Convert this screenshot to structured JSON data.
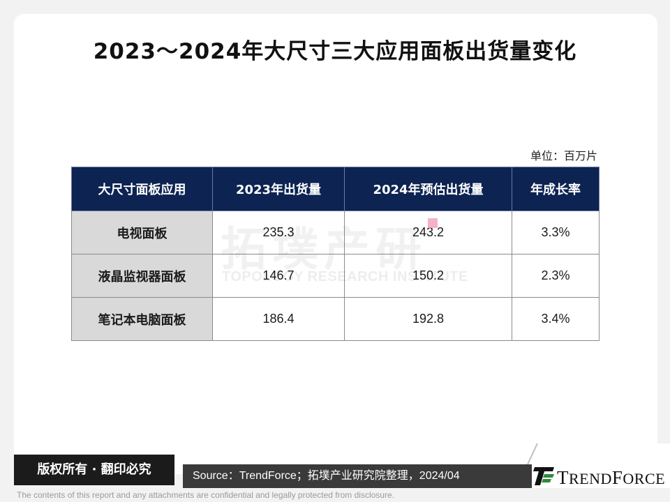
{
  "title": "2023～2024年大尺寸三大应用面板出货量变化",
  "unit": "单位：百万片",
  "watermark": {
    "cn": "拓墣产研",
    "en": "TOPOLOGY RESEARCH INSTITUTE"
  },
  "table": {
    "headers": [
      "大尺寸面板应用",
      "2023年出货量",
      "2024年预估出货量",
      "年成长率"
    ],
    "rows": [
      {
        "label": "电视面板",
        "v2023": "235.3",
        "v2024": "243.2",
        "growth": "3.3%"
      },
      {
        "label": "液晶监视器面板",
        "v2023": "146.7",
        "v2024": "150.2",
        "growth": "2.3%"
      },
      {
        "label": "笔记本电脑面板",
        "v2023": "186.4",
        "v2024": "192.8",
        "growth": "3.4%"
      }
    ]
  },
  "footer": {
    "copyright": "版权所有 · 翻印必究",
    "source": "Source：TrendForce；拓墣产业研究院整理，2024/04",
    "logo_first": "T",
    "logo_rest": "REND",
    "logo_first2": "F",
    "logo_rest2": "ORCE",
    "disclaimer": "The contents of this report and any attachments are confidential and legally protected from disclosure."
  },
  "colors": {
    "header_bg": "#0d2352",
    "rowhead_bg": "#d9d9d9",
    "logo_green": "#2e8b3c"
  }
}
